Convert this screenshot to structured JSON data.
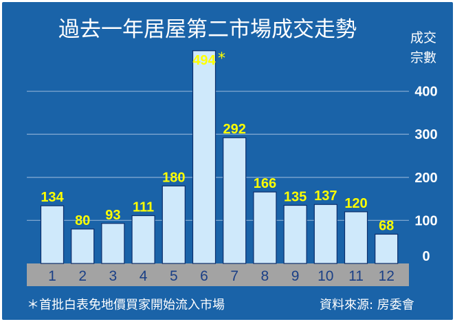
{
  "chart_data": {
    "type": "bar",
    "title": "過去一年居屋第二市場成交走勢",
    "ylabel_line1": "成交",
    "ylabel_line2": "宗數",
    "categories": [
      "1",
      "2",
      "3",
      "4",
      "5",
      "6",
      "7",
      "8",
      "9",
      "10",
      "11",
      "12"
    ],
    "values": [
      134,
      80,
      93,
      111,
      180,
      494,
      292,
      166,
      135,
      137,
      120,
      68
    ],
    "yticks": [
      "0",
      "100",
      "200",
      "300",
      "400"
    ],
    "ylim": [
      0,
      500
    ],
    "grid": true,
    "annotation": {
      "symbol": "*",
      "category": "6",
      "note": "＊首批白表免地價買家開始流入市場"
    },
    "source": "資料來源: 房委會",
    "colors": {
      "background": "#1a63a8",
      "bar": "#cfe9fb",
      "bar_edge": "#0b2d6b",
      "data_label": "#ffff00",
      "axis_band": "#a3a3a3",
      "xtick": "#1a3f86"
    }
  }
}
